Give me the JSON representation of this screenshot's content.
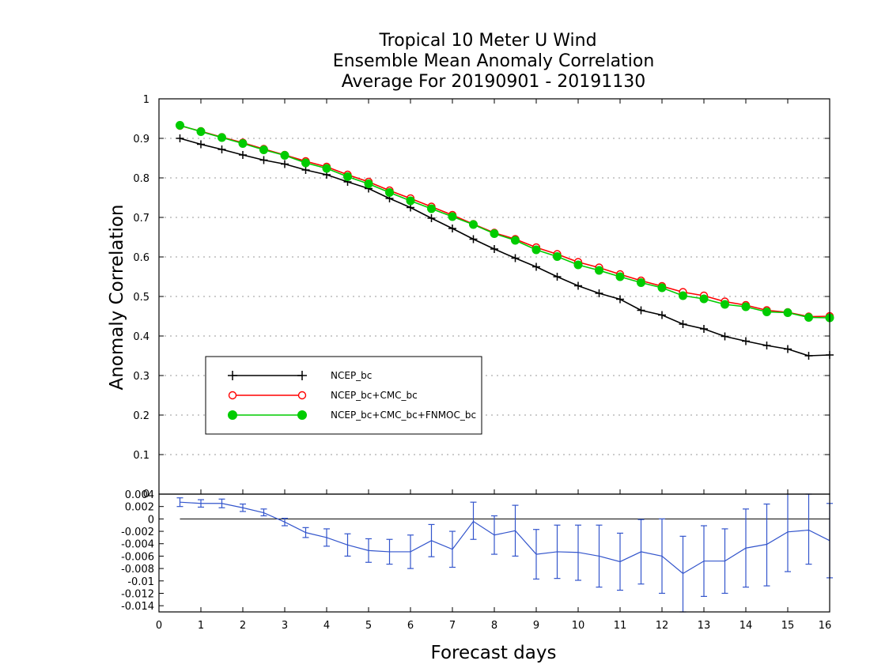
{
  "chart_data": [
    {
      "type": "line",
      "title": [
        "Tropical 10 Meter U Wind",
        "Ensemble Mean Anomaly Correlation",
        "Average For 20190901 - 20191130"
      ],
      "ylabel": "Anomaly Correlation",
      "xlabel": "",
      "ylim": [
        0,
        1
      ],
      "yticks": [
        "0.1",
        "0.2",
        "0.3",
        "0.4",
        "0.5",
        "0.6",
        "0.7",
        "0.8",
        "0.9",
        "1"
      ],
      "grid": true,
      "legend_position": "lower-left",
      "x": [
        0.5,
        1.0,
        1.5,
        2.0,
        2.5,
        3.0,
        3.5,
        4.0,
        4.5,
        5.0,
        5.5,
        6.0,
        6.5,
        7.0,
        7.5,
        8.0,
        8.5,
        9.0,
        9.5,
        10.0,
        10.5,
        11.0,
        11.5,
        12.0,
        12.5,
        13.0,
        13.5,
        14.0,
        14.5,
        15.0,
        15.5,
        16.0
      ],
      "series": [
        {
          "name": "NCEP_bc",
          "color": "#000000",
          "marker": "plus",
          "values": [
            0.9,
            0.885,
            0.872,
            0.858,
            0.845,
            0.835,
            0.82,
            0.808,
            0.79,
            0.773,
            0.748,
            0.725,
            0.698,
            0.672,
            0.645,
            0.62,
            0.597,
            0.575,
            0.55,
            0.527,
            0.508,
            0.493,
            0.465,
            0.453,
            0.43,
            0.418,
            0.399,
            0.387,
            0.376,
            0.367,
            0.35,
            0.352
          ]
        },
        {
          "name": "NCEP_bc+CMC_bc",
          "color": "#ff0000",
          "marker": "open-circle",
          "values": [
            0.932,
            0.918,
            0.903,
            0.889,
            0.873,
            0.858,
            0.842,
            0.828,
            0.808,
            0.79,
            0.768,
            0.748,
            0.727,
            0.706,
            0.683,
            0.661,
            0.645,
            0.624,
            0.607,
            0.587,
            0.573,
            0.556,
            0.54,
            0.526,
            0.511,
            0.502,
            0.487,
            0.478,
            0.465,
            0.46,
            0.449,
            0.45
          ]
        },
        {
          "name": "NCEP_bc+CMC_bc+FNMOC_bc",
          "color": "#00cc00",
          "marker": "filled-circle",
          "values": [
            0.933,
            0.917,
            0.902,
            0.887,
            0.871,
            0.857,
            0.838,
            0.824,
            0.803,
            0.785,
            0.763,
            0.742,
            0.722,
            0.702,
            0.682,
            0.659,
            0.642,
            0.618,
            0.601,
            0.58,
            0.566,
            0.55,
            0.535,
            0.522,
            0.502,
            0.494,
            0.48,
            0.474,
            0.461,
            0.459,
            0.447,
            0.446
          ]
        }
      ]
    },
    {
      "type": "line",
      "xlabel": "Forecast days",
      "xlim": [
        0,
        16
      ],
      "xticks": [
        "0",
        "1",
        "2",
        "3",
        "4",
        "5",
        "6",
        "7",
        "8",
        "9",
        "10",
        "11",
        "12",
        "13",
        "14",
        "15",
        "16"
      ],
      "ylim": [
        -0.015,
        0.004
      ],
      "yticks": [
        "0.004",
        "0.002",
        "0",
        "-0.002",
        "-0.004",
        "-0.006",
        "-0.008",
        "-0.01",
        "-0.012",
        "-0.014"
      ],
      "x": [
        0.5,
        1.0,
        1.5,
        2.0,
        2.5,
        3.0,
        3.5,
        4.0,
        4.5,
        5.0,
        5.5,
        6.0,
        6.5,
        7.0,
        7.5,
        8.0,
        8.5,
        9.0,
        9.5,
        10.0,
        10.5,
        11.0,
        11.5,
        12.0,
        12.5,
        13.0,
        13.5,
        14.0,
        14.5,
        15.0,
        15.5,
        16.0
      ],
      "series": [
        {
          "color": "#3355cc",
          "values": [
            0.0027,
            0.0025,
            0.0025,
            0.0018,
            0.001,
            -0.0005,
            -0.0022,
            -0.003,
            -0.0042,
            -0.0051,
            -0.0053,
            -0.0053,
            -0.0035,
            -0.0049,
            -0.0004,
            -0.0026,
            -0.0019,
            -0.0057,
            -0.0053,
            -0.0054,
            -0.006,
            -0.0069,
            -0.0053,
            -0.006,
            -0.0088,
            -0.0068,
            -0.0068,
            -0.0047,
            -0.0041,
            -0.0021,
            -0.0018,
            -0.0035
          ],
          "error_low": [
            0.002,
            0.0019,
            0.0018,
            0.0012,
            0.0005,
            -0.0011,
            -0.003,
            -0.0044,
            -0.006,
            -0.007,
            -0.0073,
            -0.008,
            -0.0061,
            -0.0078,
            -0.0033,
            -0.0057,
            -0.006,
            -0.0097,
            -0.0096,
            -0.0099,
            -0.011,
            -0.0115,
            -0.0105,
            -0.012,
            -0.015,
            -0.0125,
            -0.012,
            -0.011,
            -0.0108,
            -0.0085,
            -0.0073,
            -0.0095
          ],
          "error_high": [
            0.0034,
            0.0031,
            0.0032,
            0.0024,
            0.0016,
            0.0001,
            -0.0014,
            -0.0016,
            -0.0024,
            -0.0032,
            -0.0033,
            -0.0026,
            -0.0009,
            -0.002,
            0.0027,
            0.0005,
            0.0022,
            -0.0017,
            -0.001,
            -0.001,
            -0.001,
            -0.0023,
            -0.0001,
            0.0,
            -0.0028,
            -0.0011,
            -0.0016,
            0.0016,
            0.0024,
            0.0043,
            0.004,
            0.0025
          ]
        }
      ]
    }
  ]
}
